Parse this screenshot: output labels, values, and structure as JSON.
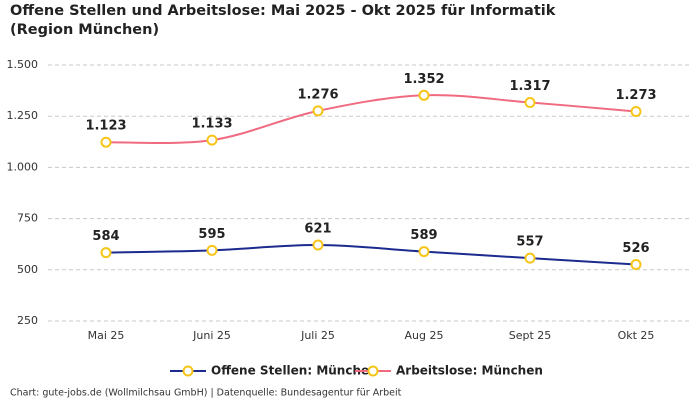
{
  "chart_data": {
    "type": "line",
    "title": "Offene Stellen und Arbeitslose: Mai 2025 - Okt 2025 für Informatik (Region München)",
    "categories": [
      "Mai 25",
      "Juni 25",
      "Juli 25",
      "Aug 25",
      "Sept 25",
      "Okt 25"
    ],
    "series": [
      {
        "name": "Offene Stellen: München",
        "color": "#1c2b8f",
        "values": [
          584,
          595,
          621,
          589,
          557,
          526
        ]
      },
      {
        "name": "Arbeitslose: München",
        "color": "#f06b80",
        "values": [
          1123,
          1133,
          1276,
          1352,
          1317,
          1273
        ],
        "value_labels": [
          "1.123",
          "1.133",
          "1.276",
          "1.352",
          "1.317",
          "1.273"
        ]
      }
    ],
    "marker_color": "#f5c518",
    "ylim": [
      250,
      1500
    ],
    "yticks": [
      250,
      500,
      {
        "value": 750,
        "label": "750"
      },
      {
        "value": 1000,
        "label": "1.000"
      },
      {
        "value": 1250,
        "label": "1.250"
      },
      {
        "value": 1500,
        "label": "1.500"
      }
    ],
    "grid": true,
    "legend": "bottom",
    "source": "Chart: gute-jobs.de (Wollmilchsau GmbH) | Datenquelle: Bundesagentur für Arbeit"
  }
}
